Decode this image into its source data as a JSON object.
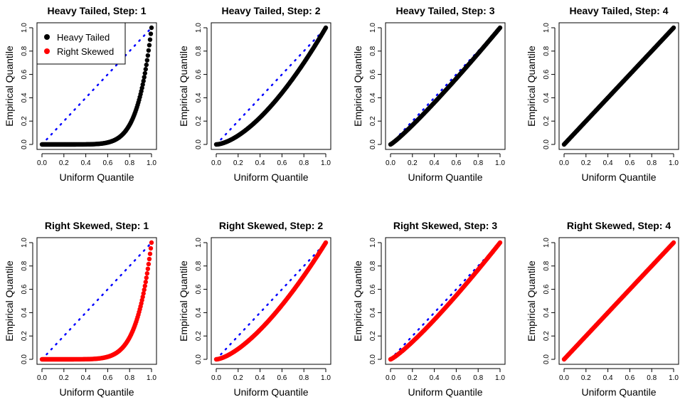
{
  "figure": {
    "legend": {
      "entries": [
        {
          "label": "Heavy Tailed",
          "color": "#000000"
        },
        {
          "label": "Right Skewed",
          "color": "#ff0000"
        }
      ],
      "placement": "top-left of first panel"
    }
  },
  "chart_data": [
    {
      "type": "scatter",
      "title": "Heavy Tailed, Step: 1",
      "xlabel": "Uniform Quantile",
      "ylabel": "Empirical Quantile",
      "xlim": [
        0,
        1
      ],
      "ylim": [
        0,
        1
      ],
      "xticks": [
        "0.0",
        "0.2",
        "0.4",
        "0.6",
        "0.8",
        "1.0"
      ],
      "yticks": [
        "0.0",
        "0.2",
        "0.4",
        "0.6",
        "0.8",
        "1.0"
      ],
      "point_color": "#000000",
      "reference_line": {
        "style": "dotted",
        "color": "#0000ff",
        "from": [
          0,
          0
        ],
        "to": [
          1,
          1
        ]
      },
      "curve_exponent": 8.0,
      "legend": true
    },
    {
      "type": "scatter",
      "title": "Heavy Tailed, Step: 2",
      "xlabel": "Uniform Quantile",
      "ylabel": "Empirical Quantile",
      "xlim": [
        0,
        1
      ],
      "ylim": [
        0,
        1
      ],
      "xticks": [
        "0.0",
        "0.2",
        "0.4",
        "0.6",
        "0.8",
        "1.0"
      ],
      "yticks": [
        "0.0",
        "0.2",
        "0.4",
        "0.6",
        "0.8",
        "1.0"
      ],
      "point_color": "#000000",
      "reference_line": {
        "style": "dotted",
        "color": "#0000ff",
        "from": [
          0,
          0
        ],
        "to": [
          1,
          1
        ]
      },
      "curve_exponent": 1.6
    },
    {
      "type": "scatter",
      "title": "Heavy Tailed, Step: 3",
      "xlabel": "Uniform Quantile",
      "ylabel": "Empirical Quantile",
      "xlim": [
        0,
        1
      ],
      "ylim": [
        0,
        1
      ],
      "xticks": [
        "0.0",
        "0.2",
        "0.4",
        "0.6",
        "0.8",
        "1.0"
      ],
      "yticks": [
        "0.0",
        "0.2",
        "0.4",
        "0.6",
        "0.8",
        "1.0"
      ],
      "point_color": "#000000",
      "reference_line": {
        "style": "dotted",
        "color": "#0000ff",
        "from": [
          0,
          0
        ],
        "to": [
          1,
          1
        ]
      },
      "curve_exponent": 1.12
    },
    {
      "type": "scatter",
      "title": "Heavy Tailed, Step: 4",
      "xlabel": "Uniform Quantile",
      "ylabel": "Empirical Quantile",
      "xlim": [
        0,
        1
      ],
      "ylim": [
        0,
        1
      ],
      "xticks": [
        "0.0",
        "0.2",
        "0.4",
        "0.6",
        "0.8",
        "1.0"
      ],
      "yticks": [
        "0.0",
        "0.2",
        "0.4",
        "0.6",
        "0.8",
        "1.0"
      ],
      "point_color": "#000000",
      "reference_line": {
        "style": "dotted",
        "color": "#0000ff",
        "from": [
          0,
          0
        ],
        "to": [
          1,
          1
        ]
      },
      "curve_exponent": 1.0
    },
    {
      "type": "scatter",
      "title": "Right Skewed, Step: 1",
      "xlabel": "Uniform Quantile",
      "ylabel": "Empirical Quantile",
      "xlim": [
        0,
        1
      ],
      "ylim": [
        0,
        1
      ],
      "xticks": [
        "0.0",
        "0.2",
        "0.4",
        "0.6",
        "0.8",
        "1.0"
      ],
      "yticks": [
        "0.0",
        "0.2",
        "0.4",
        "0.6",
        "0.8",
        "1.0"
      ],
      "point_color": "#ff0000",
      "reference_line": {
        "style": "dotted",
        "color": "#0000ff",
        "from": [
          0,
          0
        ],
        "to": [
          1,
          1
        ]
      },
      "curve_exponent": 7.5
    },
    {
      "type": "scatter",
      "title": "Right Skewed, Step: 2",
      "xlabel": "Uniform Quantile",
      "ylabel": "Empirical Quantile",
      "xlim": [
        0,
        1
      ],
      "ylim": [
        0,
        1
      ],
      "xticks": [
        "0.0",
        "0.2",
        "0.4",
        "0.6",
        "0.8",
        "1.0"
      ],
      "yticks": [
        "0.0",
        "0.2",
        "0.4",
        "0.6",
        "0.8",
        "1.0"
      ],
      "point_color": "#ff0000",
      "reference_line": {
        "style": "dotted",
        "color": "#0000ff",
        "from": [
          0,
          0
        ],
        "to": [
          1,
          1
        ]
      },
      "curve_exponent": 1.5
    },
    {
      "type": "scatter",
      "title": "Right Skewed, Step: 3",
      "xlabel": "Uniform Quantile",
      "ylabel": "Empirical Quantile",
      "xlim": [
        0,
        1
      ],
      "ylim": [
        0,
        1
      ],
      "xticks": [
        "0.0",
        "0.2",
        "0.4",
        "0.6",
        "0.8",
        "1.0"
      ],
      "yticks": [
        "0.0",
        "0.2",
        "0.4",
        "0.6",
        "0.8",
        "1.0"
      ],
      "point_color": "#ff0000",
      "reference_line": {
        "style": "dotted",
        "color": "#0000ff",
        "from": [
          0,
          0
        ],
        "to": [
          1,
          1
        ]
      },
      "curve_exponent": 1.18
    },
    {
      "type": "scatter",
      "title": "Right Skewed, Step: 4",
      "xlabel": "Uniform Quantile",
      "ylabel": "Empirical Quantile",
      "xlim": [
        0,
        1
      ],
      "ylim": [
        0,
        1
      ],
      "xticks": [
        "0.0",
        "0.2",
        "0.4",
        "0.6",
        "0.8",
        "1.0"
      ],
      "yticks": [
        "0.0",
        "0.2",
        "0.4",
        "0.6",
        "0.8",
        "1.0"
      ],
      "point_color": "#ff0000",
      "reference_line": {
        "style": "dotted",
        "color": "#0000ff",
        "from": [
          0,
          0
        ],
        "to": [
          1,
          1
        ]
      },
      "curve_exponent": 1.0
    }
  ]
}
